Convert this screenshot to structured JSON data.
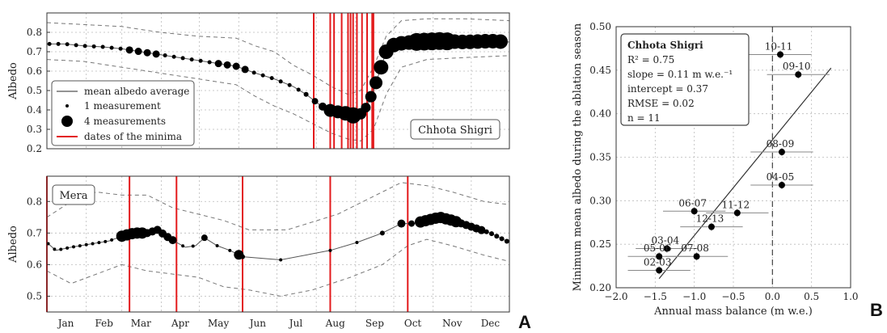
{
  "panel_labels": {
    "a": "A",
    "b": "B"
  },
  "chart_data": [
    {
      "type": "line",
      "panel": "Chhota Shigri",
      "ylabel": "Albedo",
      "ylim": [
        0.2,
        0.9
      ],
      "yticks": [
        "0.2",
        "0.3",
        "0.4",
        "0.5",
        "0.6",
        "0.7",
        "0.8"
      ],
      "xticks": [
        "Jan",
        "Feb",
        "Mar",
        "Apr",
        "May",
        "Jun",
        "Jul",
        "Aug",
        "Sep",
        "Oct",
        "Nov",
        "Dec"
      ],
      "box_label": "Chhota Shigri",
      "legend": [
        "mean albedo average",
        "1 measurement",
        "4 measurements",
        "dates of the minima"
      ],
      "minima_doy": [
        211,
        224,
        227,
        233,
        238,
        240,
        242,
        245,
        249,
        253,
        257,
        258
      ],
      "mean": [
        [
          1,
          0.74
        ],
        [
          15,
          0.74
        ],
        [
          30,
          0.73
        ],
        [
          45,
          0.725
        ],
        [
          60,
          0.715
        ],
        [
          75,
          0.7
        ],
        [
          90,
          0.685
        ],
        [
          105,
          0.67
        ],
        [
          120,
          0.655
        ],
        [
          135,
          0.64
        ],
        [
          150,
          0.625
        ],
        [
          165,
          0.59
        ],
        [
          180,
          0.56
        ],
        [
          195,
          0.52
        ],
        [
          205,
          0.48
        ],
        [
          215,
          0.43
        ],
        [
          222,
          0.4
        ],
        [
          230,
          0.39
        ],
        [
          238,
          0.38
        ],
        [
          243,
          0.37
        ],
        [
          248,
          0.38
        ],
        [
          253,
          0.42
        ],
        [
          258,
          0.5
        ],
        [
          263,
          0.6
        ],
        [
          268,
          0.7
        ],
        [
          275,
          0.74
        ],
        [
          290,
          0.75
        ],
        [
          310,
          0.755
        ],
        [
          330,
          0.75
        ],
        [
          350,
          0.755
        ],
        [
          365,
          0.75
        ]
      ],
      "upper": [
        [
          1,
          0.85
        ],
        [
          30,
          0.84
        ],
        [
          60,
          0.83
        ],
        [
          90,
          0.8
        ],
        [
          120,
          0.78
        ],
        [
          150,
          0.77
        ],
        [
          165,
          0.73
        ],
        [
          180,
          0.7
        ],
        [
          195,
          0.63
        ],
        [
          210,
          0.58
        ],
        [
          225,
          0.52
        ],
        [
          238,
          0.48
        ],
        [
          248,
          0.5
        ],
        [
          258,
          0.62
        ],
        [
          268,
          0.78
        ],
        [
          280,
          0.86
        ],
        [
          300,
          0.87
        ],
        [
          330,
          0.87
        ],
        [
          365,
          0.86
        ]
      ],
      "lower": [
        [
          1,
          0.66
        ],
        [
          30,
          0.65
        ],
        [
          60,
          0.62
        ],
        [
          90,
          0.59
        ],
        [
          120,
          0.56
        ],
        [
          150,
          0.53
        ],
        [
          165,
          0.47
        ],
        [
          180,
          0.42
        ],
        [
          195,
          0.38
        ],
        [
          210,
          0.33
        ],
        [
          225,
          0.28
        ],
        [
          238,
          0.25
        ],
        [
          248,
          0.24
        ],
        [
          258,
          0.3
        ],
        [
          268,
          0.48
        ],
        [
          280,
          0.62
        ],
        [
          300,
          0.66
        ],
        [
          330,
          0.67
        ],
        [
          365,
          0.68
        ]
      ]
    },
    {
      "type": "line",
      "panel": "Mera",
      "ylabel": "Albedo",
      "ylim": [
        0.45,
        0.88
      ],
      "yticks": [
        "0.5",
        "0.6",
        "0.7",
        "0.8"
      ],
      "xticks": [
        "Jan",
        "Feb",
        "Mar",
        "Apr",
        "May",
        "Jun",
        "Jul",
        "Aug",
        "Sep",
        "Oct",
        "Nov",
        "Dec"
      ],
      "box_label": "Mera",
      "minima_doy": [
        1,
        66,
        103,
        155,
        224,
        285
      ],
      "mean": [
        [
          1,
          0.67
        ],
        [
          8,
          0.645
        ],
        [
          20,
          0.655
        ],
        [
          35,
          0.665
        ],
        [
          50,
          0.675
        ],
        [
          60,
          0.69
        ],
        [
          70,
          0.7
        ],
        [
          80,
          0.7
        ],
        [
          88,
          0.71
        ],
        [
          95,
          0.69
        ],
        [
          103,
          0.67
        ],
        [
          110,
          0.655
        ],
        [
          118,
          0.66
        ],
        [
          125,
          0.685
        ],
        [
          135,
          0.66
        ],
        [
          145,
          0.645
        ],
        [
          155,
          0.625
        ],
        [
          185,
          0.615
        ],
        [
          224,
          0.645
        ],
        [
          245,
          0.67
        ],
        [
          265,
          0.7
        ],
        [
          280,
          0.73
        ],
        [
          290,
          0.73
        ],
        [
          300,
          0.74
        ],
        [
          310,
          0.75
        ],
        [
          320,
          0.74
        ],
        [
          335,
          0.72
        ],
        [
          350,
          0.7
        ],
        [
          365,
          0.67
        ]
      ],
      "upper": [
        [
          1,
          0.75
        ],
        [
          20,
          0.8
        ],
        [
          40,
          0.83
        ],
        [
          60,
          0.82
        ],
        [
          80,
          0.82
        ],
        [
          100,
          0.78
        ],
        [
          120,
          0.76
        ],
        [
          140,
          0.74
        ],
        [
          160,
          0.71
        ],
        [
          190,
          0.71
        ],
        [
          230,
          0.76
        ],
        [
          260,
          0.82
        ],
        [
          280,
          0.86
        ],
        [
          300,
          0.85
        ],
        [
          320,
          0.83
        ],
        [
          345,
          0.8
        ],
        [
          365,
          0.79
        ]
      ],
      "lower": [
        [
          1,
          0.58
        ],
        [
          20,
          0.54
        ],
        [
          40,
          0.57
        ],
        [
          60,
          0.6
        ],
        [
          80,
          0.58
        ],
        [
          100,
          0.57
        ],
        [
          120,
          0.56
        ],
        [
          140,
          0.53
        ],
        [
          160,
          0.52
        ],
        [
          185,
          0.5
        ],
        [
          210,
          0.52
        ],
        [
          240,
          0.56
        ],
        [
          265,
          0.6
        ],
        [
          285,
          0.66
        ],
        [
          300,
          0.68
        ],
        [
          320,
          0.66
        ],
        [
          345,
          0.63
        ],
        [
          365,
          0.61
        ]
      ]
    },
    {
      "type": "scatter",
      "xlabel": "Annual mass balance (m w.e.)",
      "ylabel": "Minimum mean albedo during the ablation season",
      "xlim": [
        -2.0,
        1.0
      ],
      "ylim": [
        0.2,
        0.5
      ],
      "xticks": [
        "−2.0",
        "−1.5",
        "−1.0",
        "−0.5",
        "0.0",
        "0.5",
        "1.0"
      ],
      "yticks": [
        "0.20",
        "0.25",
        "0.30",
        "0.35",
        "0.40",
        "0.45",
        "0.50"
      ],
      "stats": {
        "title": "Chhota Shigri",
        "r2": "R² = 0.75",
        "slope": "slope = 0.11 m w.e.⁻¹",
        "intercept": "intercept = 0.37",
        "rmse": "RMSE = 0.02",
        "n": "n = 11"
      },
      "fit": {
        "slope": 0.11,
        "intercept": 0.37,
        "x_range": [
          -1.45,
          0.75
        ]
      },
      "points": [
        {
          "label": "10-11",
          "x": 0.1,
          "y": 0.468,
          "xerr": 0.4
        },
        {
          "label": "09-10",
          "x": 0.33,
          "y": 0.445,
          "xerr": 0.4
        },
        {
          "label": "08-09",
          "x": 0.12,
          "y": 0.356,
          "xerr": 0.4
        },
        {
          "label": "04-05",
          "x": 0.12,
          "y": 0.318,
          "xerr": 0.4
        },
        {
          "label": "06-07",
          "x": -1.0,
          "y": 0.288,
          "xerr": 0.4
        },
        {
          "label": "11-12",
          "x": -0.45,
          "y": 0.286,
          "xerr": 0.4
        },
        {
          "label": "12-13",
          "x": -0.78,
          "y": 0.27,
          "xerr": 0.4
        },
        {
          "label": "03-04",
          "x": -1.35,
          "y": 0.245,
          "xerr": 0.4
        },
        {
          "label": "05-06",
          "x": -1.45,
          "y": 0.236,
          "xerr": 0.4
        },
        {
          "label": "07-08",
          "x": -0.97,
          "y": 0.236,
          "xerr": 0.4
        },
        {
          "label": "02-03",
          "x": -1.45,
          "y": 0.22,
          "xerr": 0.4
        }
      ]
    }
  ]
}
